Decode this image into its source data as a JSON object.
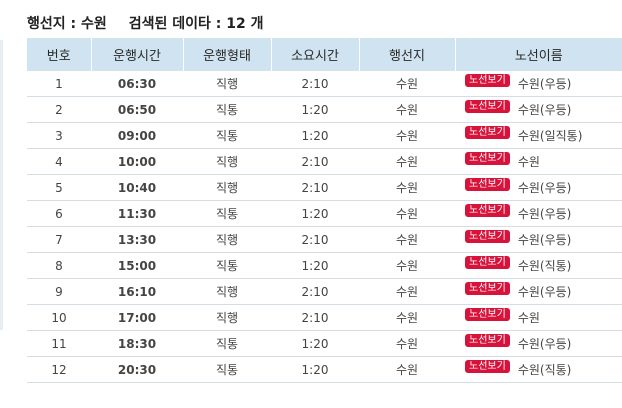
{
  "summary": {
    "destination_label": "행선지 : 수원",
    "count_label": "검색된 데이타 : 12 개"
  },
  "table": {
    "headers": [
      "번호",
      "운행시간",
      "운행형태",
      "소요시간",
      "행선지",
      "노선이름"
    ],
    "route_button_label": "노선보기",
    "rows": [
      {
        "no": "1",
        "time": "06:30",
        "type": "직행",
        "duration": "2:10",
        "dest": "수원",
        "route": "수원(우등)"
      },
      {
        "no": "2",
        "time": "06:50",
        "type": "직통",
        "duration": "1:20",
        "dest": "수원",
        "route": "수원(우등)"
      },
      {
        "no": "3",
        "time": "09:00",
        "type": "직통",
        "duration": "1:20",
        "dest": "수원",
        "route": "수원(일직통)"
      },
      {
        "no": "4",
        "time": "10:00",
        "type": "직행",
        "duration": "2:10",
        "dest": "수원",
        "route": "수원"
      },
      {
        "no": "5",
        "time": "10:40",
        "type": "직행",
        "duration": "2:10",
        "dest": "수원",
        "route": "수원(우등)"
      },
      {
        "no": "6",
        "time": "11:30",
        "type": "직통",
        "duration": "1:20",
        "dest": "수원",
        "route": "수원(우등)"
      },
      {
        "no": "7",
        "time": "13:30",
        "type": "직행",
        "duration": "2:10",
        "dest": "수원",
        "route": "수원(우등)"
      },
      {
        "no": "8",
        "time": "15:00",
        "type": "직통",
        "duration": "1:20",
        "dest": "수원",
        "route": "수원(직통)"
      },
      {
        "no": "9",
        "time": "16:10",
        "type": "직행",
        "duration": "2:10",
        "dest": "수원",
        "route": "수원(우등)"
      },
      {
        "no": "10",
        "time": "17:00",
        "type": "직행",
        "duration": "2:10",
        "dest": "수원",
        "route": "수원"
      },
      {
        "no": "11",
        "time": "18:30",
        "type": "직통",
        "duration": "1:20",
        "dest": "수원",
        "route": "수원(우등)"
      },
      {
        "no": "12",
        "time": "20:30",
        "type": "직통",
        "duration": "1:20",
        "dest": "수원",
        "route": "수원(직통)"
      }
    ]
  }
}
